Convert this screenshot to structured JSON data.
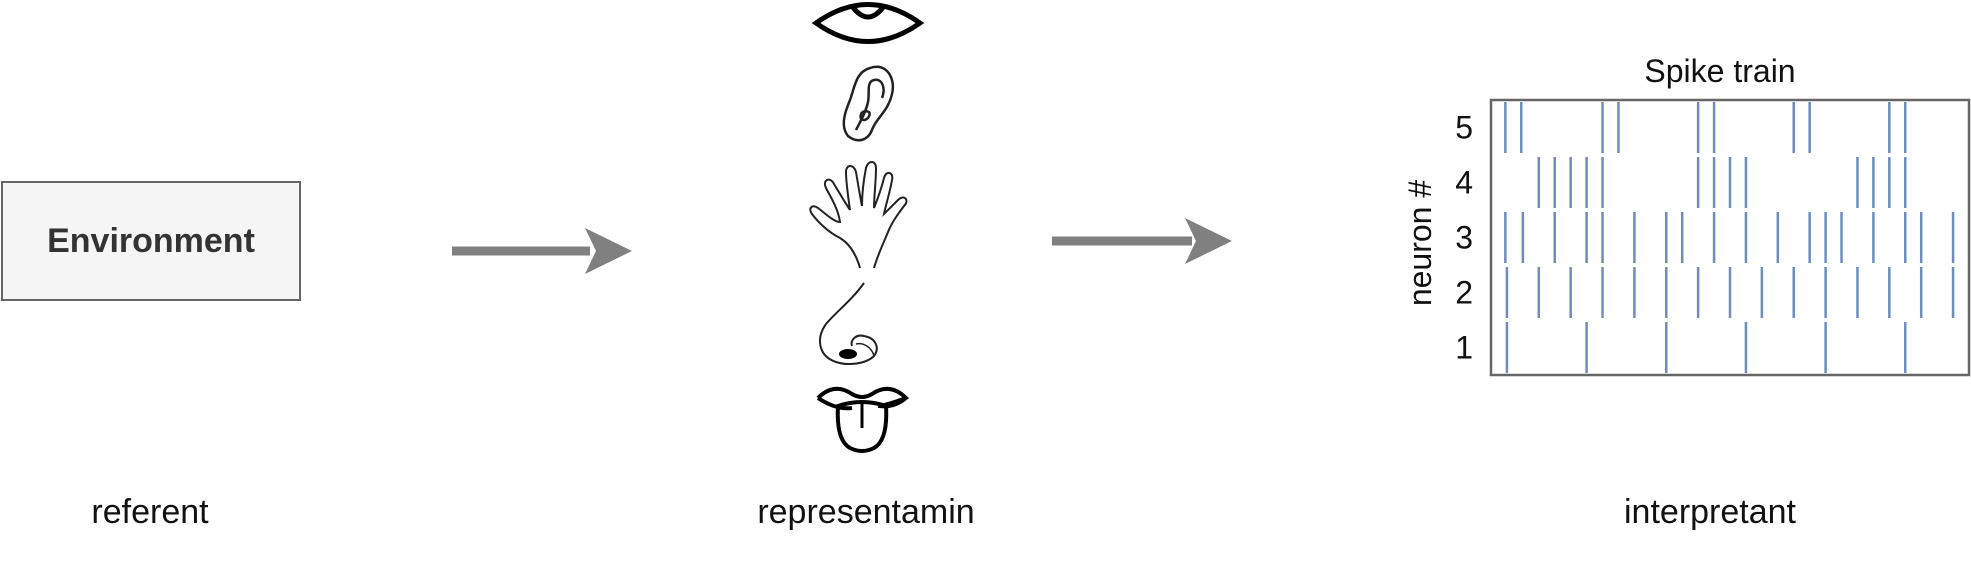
{
  "referent": {
    "box_label": "Environment",
    "caption": "referent"
  },
  "representamin": {
    "caption": "representamin",
    "icons": [
      "eye-icon",
      "ear-icon",
      "hand-icon",
      "nose-icon",
      "tongue-icon"
    ]
  },
  "interpretant": {
    "caption": "interpretant"
  },
  "colors": {
    "arrow": "#808080",
    "spike": "#6c8ebf",
    "frame": "#666666",
    "box_fill": "#f5f5f5"
  },
  "chart_data": {
    "type": "raster",
    "title": "Spike train",
    "ylabel": "neuron #",
    "xlabel": "",
    "yticks": [
      "1",
      "2",
      "3",
      "4",
      "5"
    ],
    "xlim": [
      0,
      30
    ],
    "neurons": [
      {
        "neuron": 1,
        "spikes": [
          1,
          6,
          11,
          16,
          21,
          26
        ]
      },
      {
        "neuron": 2,
        "spikes": [
          1,
          3,
          5,
          7,
          9,
          11,
          13,
          15,
          17,
          19,
          21,
          23,
          25,
          27,
          29
        ]
      },
      {
        "neuron": 3,
        "spikes": [
          0.9,
          2,
          4,
          6,
          7,
          9,
          11,
          12,
          14,
          16,
          18,
          20,
          21,
          22,
          24,
          26,
          27,
          29
        ]
      },
      {
        "neuron": 4,
        "spikes": [
          3,
          4,
          5,
          6,
          7,
          13,
          14,
          15,
          16,
          23,
          24,
          25,
          26
        ]
      },
      {
        "neuron": 5,
        "spikes": [
          0.9,
          1.9,
          7,
          8,
          13,
          14,
          19,
          20,
          25,
          26
        ]
      }
    ]
  }
}
